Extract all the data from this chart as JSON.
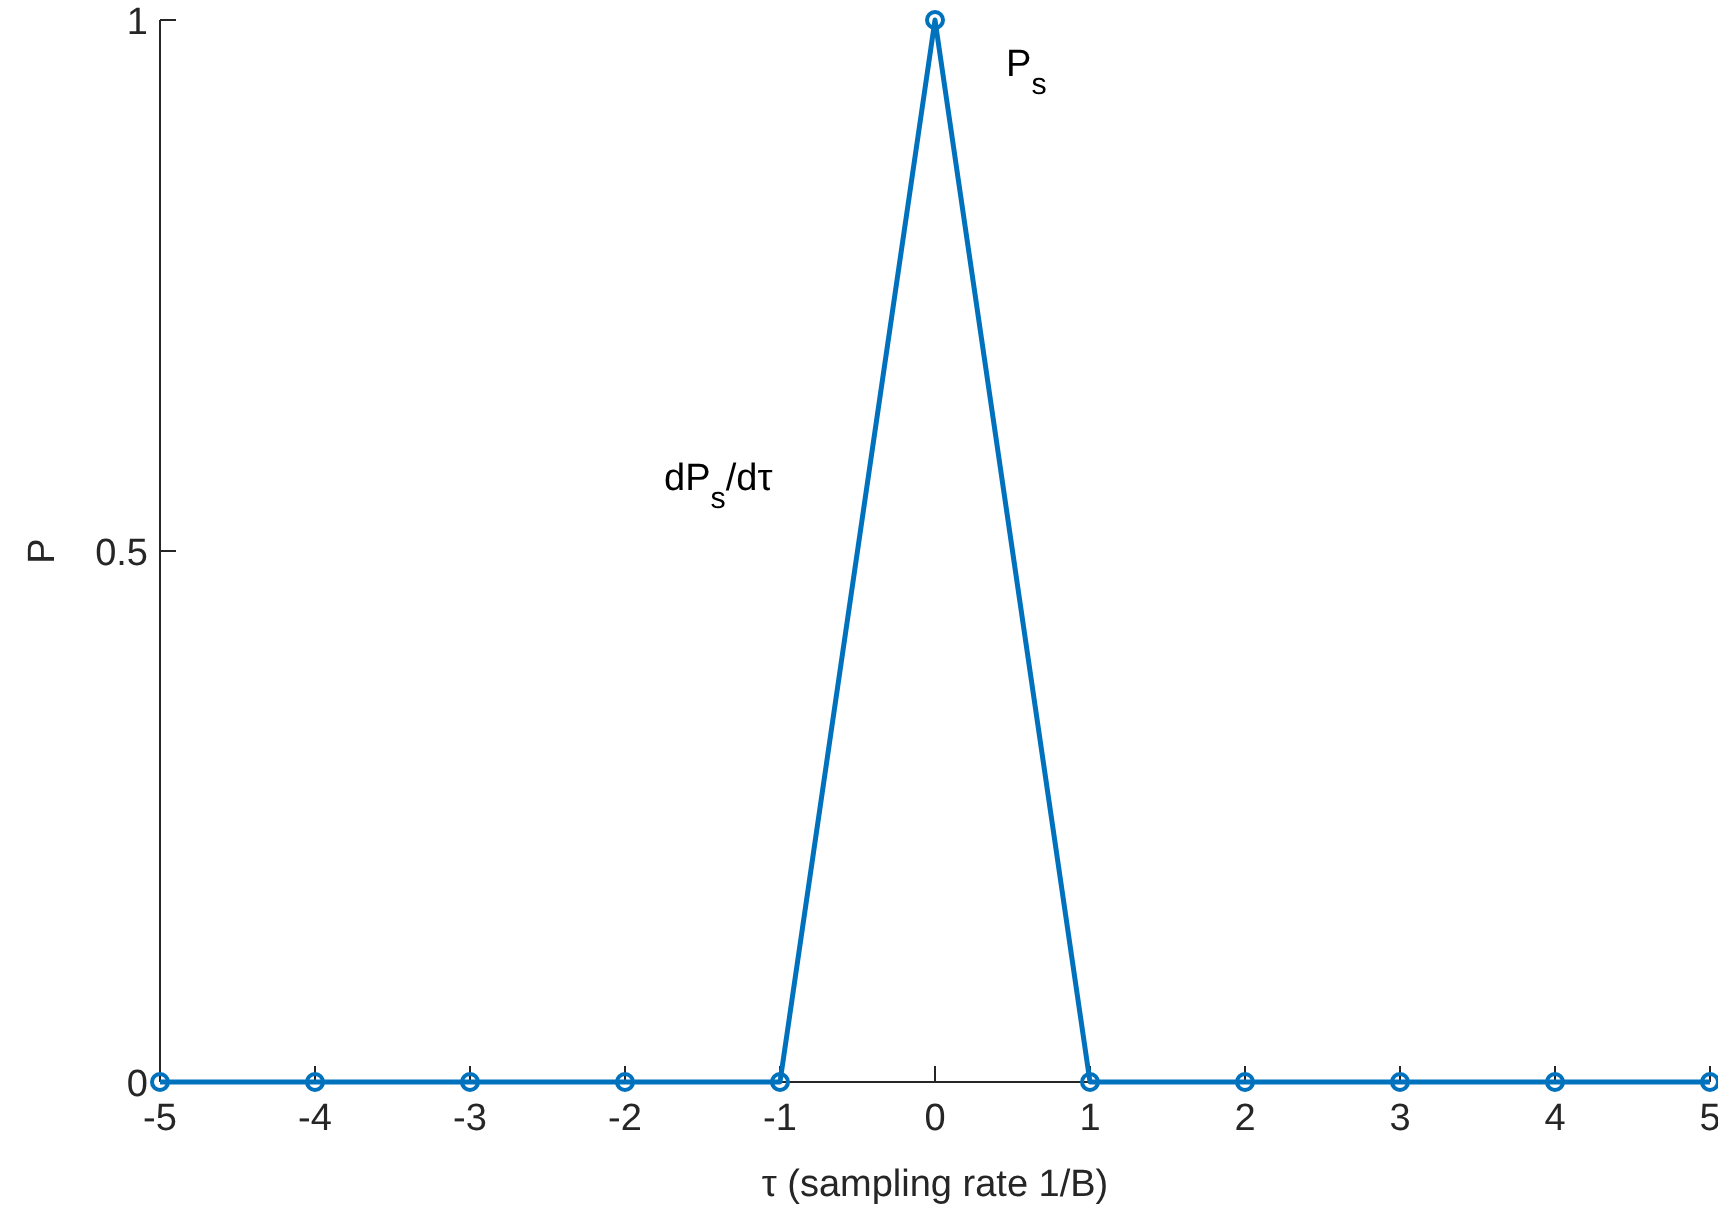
{
  "chart_data": {
    "type": "line",
    "xlabel": "τ (sampling rate 1/B)",
    "ylabel": "P",
    "x": [
      -5,
      -4,
      -3,
      -2,
      -1,
      0,
      1,
      2,
      3,
      4,
      5
    ],
    "series": [
      {
        "color": "#0072bd",
        "values": [
          0,
          0,
          0,
          0,
          0,
          1,
          0,
          0,
          0,
          0,
          0
        ]
      }
    ],
    "xlim": [
      -5,
      5
    ],
    "ylim": [
      0,
      1
    ],
    "xticks": [
      -5,
      -4,
      -3,
      -2,
      -1,
      0,
      1,
      2,
      3,
      4,
      5
    ],
    "yticks": [
      0,
      0.5,
      1
    ],
    "marker": "circle",
    "line_style": "solid",
    "grid": false,
    "annotations": [
      "P$_{s}$",
      "dP$_{s}$/dτ"
    ]
  }
}
